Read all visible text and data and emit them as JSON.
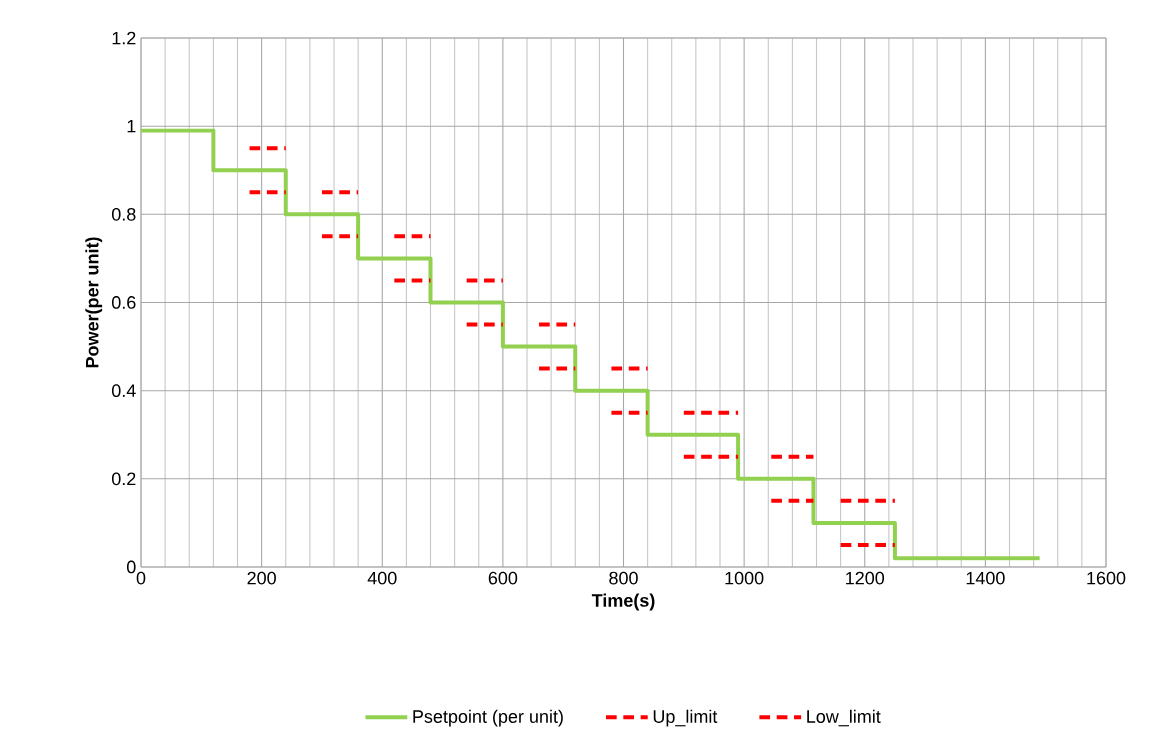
{
  "chart_data": {
    "type": "step",
    "xlabel": "Time(s)",
    "ylabel": "Power(per unit)",
    "xlim": [
      0,
      1600
    ],
    "ylim": [
      0,
      1.2
    ],
    "xticks": [
      0,
      200,
      400,
      600,
      800,
      1000,
      1200,
      1400,
      1600
    ],
    "yticks": [
      0,
      0.2,
      0.4,
      0.6,
      0.8,
      1,
      1.2
    ],
    "grid": true,
    "legend": "bottom",
    "marker": "none",
    "series": [
      {
        "name": "Psetpoint (per unit)",
        "line_style": "solid",
        "color": "#92d050",
        "x": [
          0,
          120,
          240,
          360,
          480,
          600,
          720,
          840,
          990,
          1115,
          1250,
          1490
        ],
        "values": [
          0.99,
          0.9,
          0.8,
          0.7,
          0.6,
          0.5,
          0.4,
          0.3,
          0.2,
          0.1,
          0.02,
          0.02
        ]
      },
      {
        "name": "Up_limit",
        "type": "line",
        "line_style": "dashed",
        "color": "#ff0000",
        "x": [
          180,
          240,
          270,
          300,
          360,
          390,
          420,
          480,
          510,
          540,
          600,
          630,
          660,
          720,
          750,
          780,
          840,
          870,
          900,
          990,
          1015,
          1045,
          1115,
          1140,
          1160,
          1250
        ],
        "values": [
          0.95,
          0.95,
          null,
          0.85,
          0.85,
          null,
          0.75,
          0.75,
          null,
          0.65,
          0.65,
          null,
          0.55,
          0.55,
          null,
          0.45,
          0.45,
          null,
          0.35,
          0.35,
          null,
          0.25,
          0.25,
          null,
          0.15,
          0.15
        ]
      },
      {
        "name": "Low_limit",
        "type": "line",
        "line_style": "dashed",
        "color": "#ff0000",
        "x": [
          180,
          240,
          270,
          300,
          360,
          390,
          420,
          480,
          510,
          540,
          600,
          630,
          660,
          720,
          750,
          780,
          840,
          870,
          900,
          990,
          1015,
          1045,
          1115,
          1140,
          1160,
          1250
        ],
        "values": [
          0.85,
          0.85,
          null,
          0.75,
          0.75,
          null,
          0.65,
          0.65,
          null,
          0.55,
          0.55,
          null,
          0.45,
          0.45,
          null,
          0.35,
          0.35,
          null,
          0.25,
          0.25,
          null,
          0.15,
          0.15,
          null,
          0.05,
          0.05
        ]
      }
    ]
  }
}
